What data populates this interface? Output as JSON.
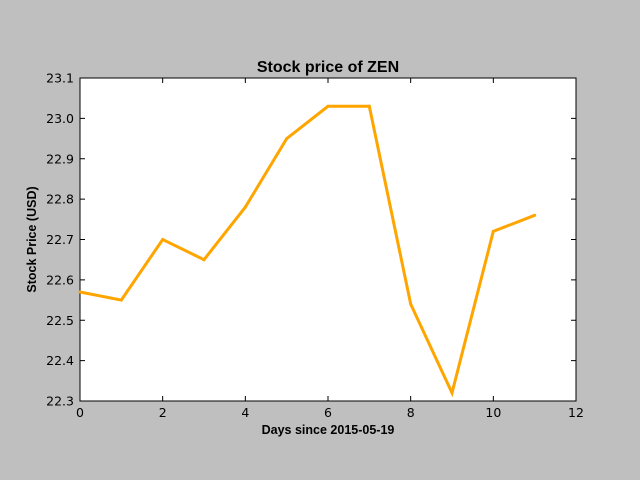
{
  "chart_data": {
    "type": "line",
    "title": "Stock price of ZEN",
    "xlabel": "Days since 2015-05-19",
    "ylabel": "Stock Price (USD)",
    "xlim": [
      0,
      12
    ],
    "ylim": [
      22.3,
      23.1
    ],
    "x_ticks": [
      "0",
      "2",
      "4",
      "6",
      "8",
      "10",
      "12"
    ],
    "y_ticks": [
      "22.3",
      "22.4",
      "22.5",
      "22.6",
      "22.7",
      "22.8",
      "22.9",
      "23.0",
      "23.1"
    ],
    "grid": false,
    "series": [
      {
        "color": "#ffa500",
        "x": [
          0,
          1,
          2,
          3,
          4,
          5,
          6,
          7,
          8,
          9,
          10,
          11
        ],
        "values": [
          22.57,
          22.55,
          22.7,
          22.65,
          22.78,
          22.95,
          23.03,
          23.03,
          22.54,
          22.32,
          22.72,
          22.76
        ]
      }
    ]
  }
}
